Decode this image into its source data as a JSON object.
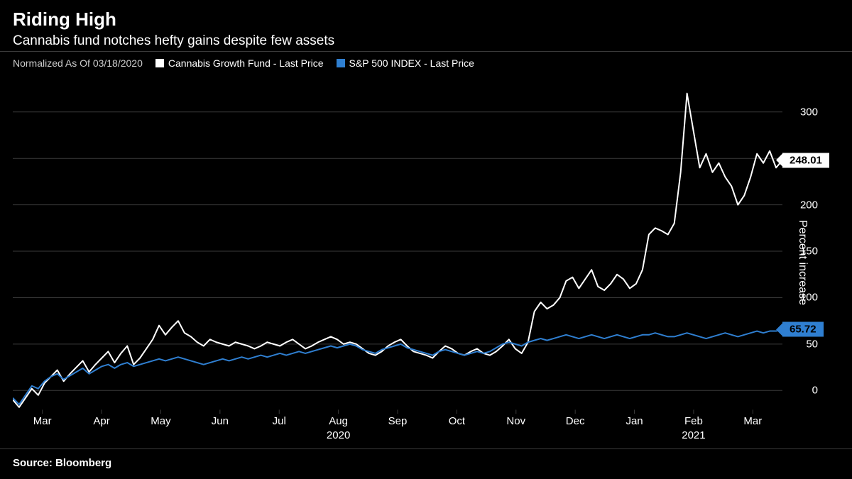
{
  "title": "Riding High",
  "subtitle": "Cannabis fund notches hefty gains despite few assets",
  "legend": {
    "normalized": "Normalized As Of 03/18/2020",
    "series1": {
      "label": "Cannabis Growth Fund - Last Price",
      "color": "#ffffff"
    },
    "series2": {
      "label": "S&P 500 INDEX - Last Price",
      "color": "#2f7fd1"
    }
  },
  "source": "Source: Bloomberg",
  "chart": {
    "type": "line",
    "background_color": "#000000",
    "grid_color": "#3a3a3a",
    "yaxis": {
      "title": "Percent increase",
      "min": -25,
      "max": 335,
      "ticks": [
        0,
        50,
        100,
        150,
        200,
        250,
        300
      ]
    },
    "xaxis": {
      "labels": [
        "Mar",
        "Apr",
        "May",
        "Jun",
        "Jul",
        "Aug",
        "Sep",
        "Oct",
        "Nov",
        "Dec",
        "Jan",
        "Feb",
        "Mar"
      ],
      "year_markers": [
        {
          "under_index": 5,
          "text": "2020"
        },
        {
          "under_index": 11,
          "text": "2021"
        }
      ]
    },
    "series": [
      {
        "name": "Cannabis Growth Fund",
        "color": "#ffffff",
        "width": 2,
        "end_value": 248.01,
        "end_label_bg": "#ffffff",
        "end_label_fg": "#000000",
        "data": [
          -10,
          -18,
          -8,
          2,
          -5,
          8,
          15,
          22,
          10,
          18,
          25,
          32,
          20,
          28,
          35,
          42,
          30,
          40,
          48,
          28,
          35,
          45,
          55,
          70,
          60,
          68,
          75,
          62,
          58,
          52,
          48,
          55,
          52,
          50,
          48,
          52,
          50,
          48,
          45,
          48,
          52,
          50,
          48,
          52,
          55,
          50,
          45,
          48,
          52,
          55,
          58,
          55,
          50,
          52,
          50,
          45,
          40,
          38,
          42,
          48,
          52,
          55,
          48,
          42,
          40,
          38,
          35,
          42,
          48,
          45,
          40,
          38,
          42,
          45,
          40,
          38,
          42,
          48,
          55,
          45,
          40,
          52,
          85,
          95,
          88,
          92,
          100,
          118,
          122,
          110,
          120,
          130,
          112,
          108,
          115,
          125,
          120,
          110,
          115,
          130,
          168,
          175,
          172,
          168,
          180,
          235,
          320,
          280,
          240,
          255,
          235,
          245,
          230,
          220,
          200,
          210,
          230,
          255,
          245,
          258,
          240,
          248
        ]
      },
      {
        "name": "S&P 500 INDEX",
        "color": "#2f7fd1",
        "width": 2,
        "end_value": 65.72,
        "end_label_bg": "#2f7fd1",
        "end_label_fg": "#000000",
        "data": [
          -8,
          -15,
          -5,
          5,
          2,
          10,
          15,
          18,
          12,
          16,
          20,
          24,
          18,
          22,
          26,
          28,
          24,
          28,
          30,
          26,
          28,
          30,
          32,
          34,
          32,
          34,
          36,
          34,
          32,
          30,
          28,
          30,
          32,
          34,
          32,
          34,
          36,
          34,
          36,
          38,
          36,
          38,
          40,
          38,
          40,
          42,
          40,
          42,
          44,
          46,
          48,
          46,
          48,
          50,
          48,
          44,
          42,
          40,
          44,
          46,
          48,
          50,
          46,
          44,
          42,
          40,
          38,
          42,
          44,
          42,
          40,
          38,
          40,
          42,
          40,
          42,
          46,
          50,
          52,
          50,
          48,
          52,
          54,
          56,
          54,
          56,
          58,
          60,
          58,
          56,
          58,
          60,
          58,
          56,
          58,
          60,
          58,
          56,
          58,
          60,
          60,
          62,
          60,
          58,
          58,
          60,
          62,
          60,
          58,
          56,
          58,
          60,
          62,
          60,
          58,
          60,
          62,
          64,
          62,
          64,
          64,
          65.72
        ]
      }
    ]
  }
}
